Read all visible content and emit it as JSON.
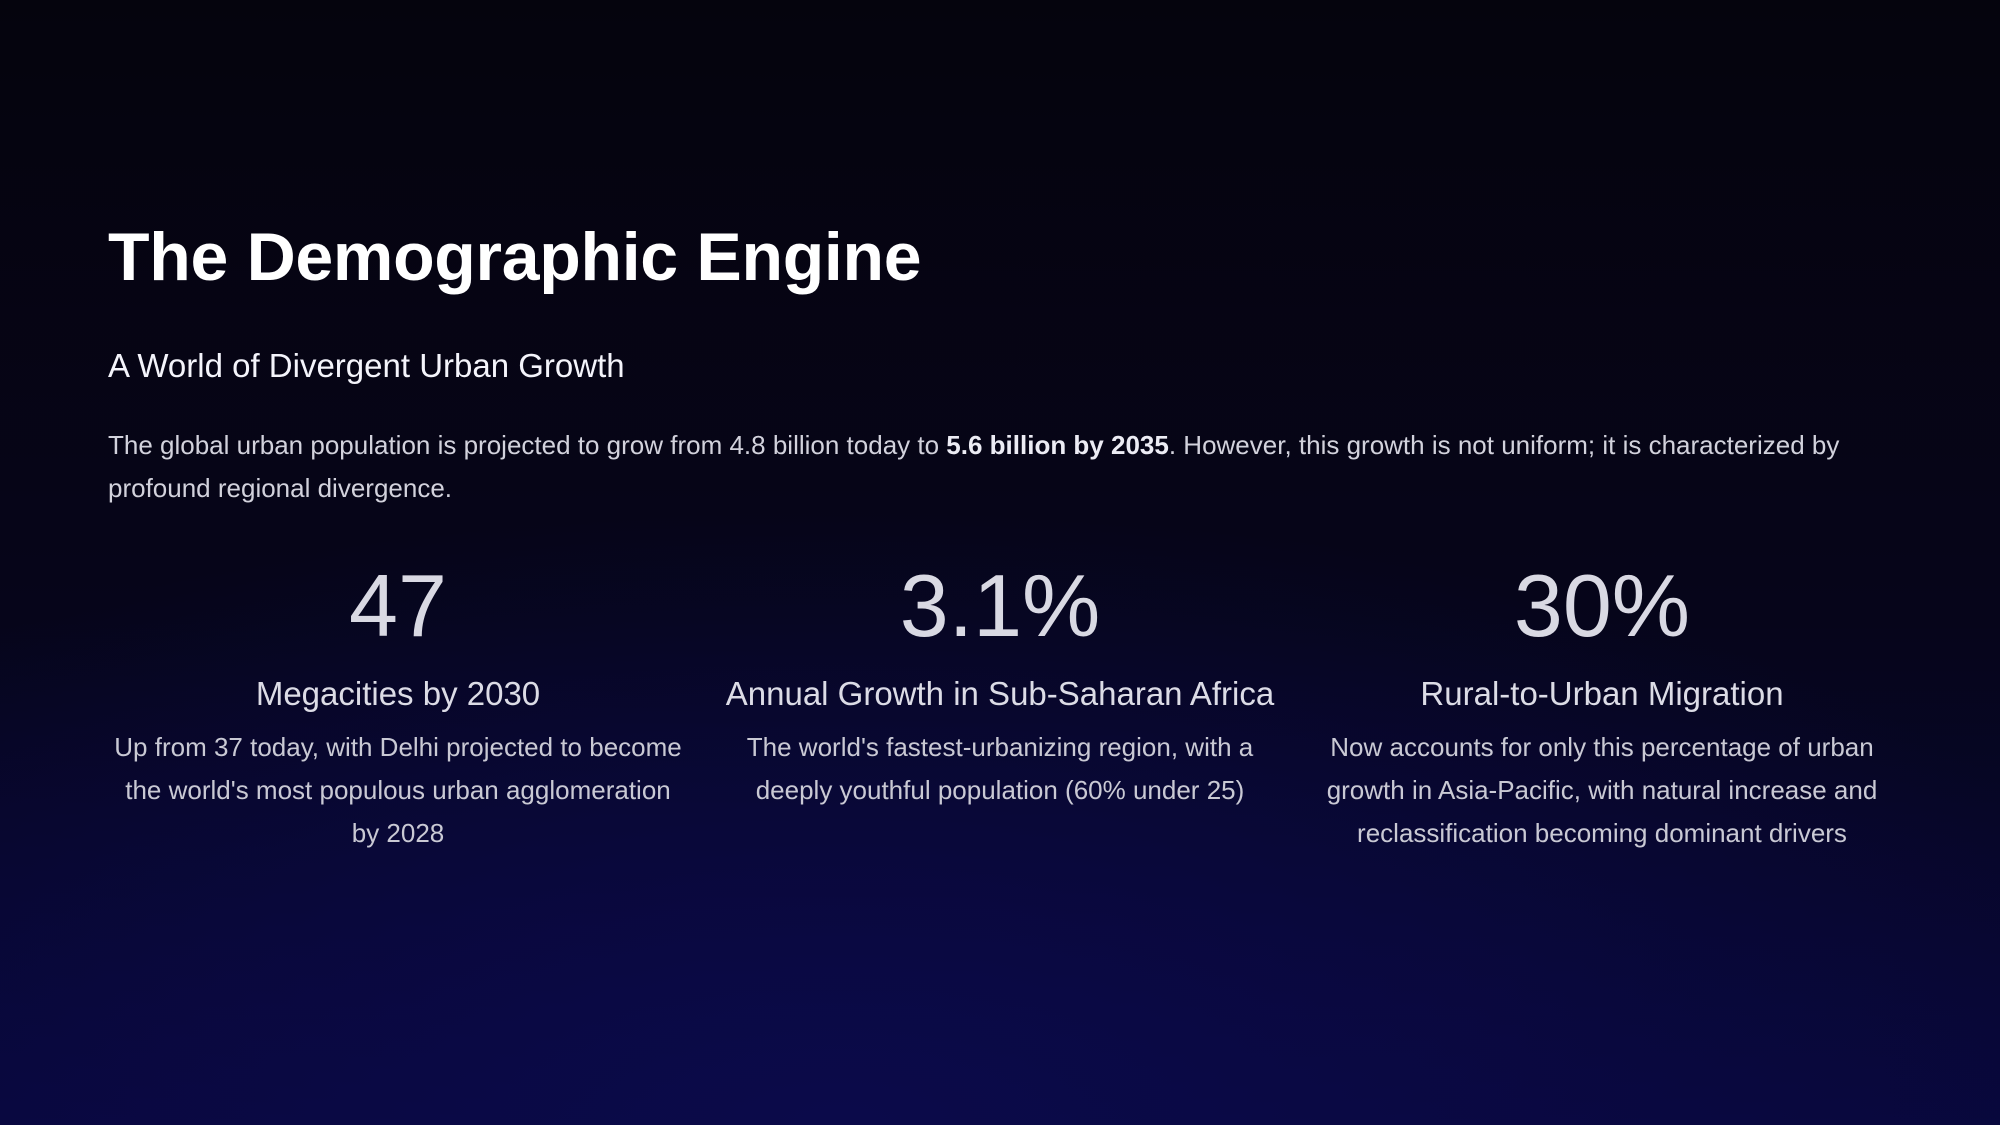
{
  "slide": {
    "title": "The Demographic Engine",
    "subtitle": "A World of Divergent Urban Growth",
    "intro": {
      "before": "The global urban population is projected to grow from 4.8 billion today to ",
      "highlight": "5.6 billion by 2035",
      "after": ". However, this growth is not uniform; it is characterized by profound regional divergence."
    },
    "stats": [
      {
        "value": "47",
        "label": "Megacities by 2030",
        "description": "Up from 37 today, with Delhi projected to become the world's most populous urban agglomeration by 2028"
      },
      {
        "value": "3.1%",
        "label": "Annual Growth in Sub-Saharan Africa",
        "description": "The world's fastest-urbanizing region, with a deeply youthful population (60% under 25)"
      },
      {
        "value": "30%",
        "label": "Rural-to-Urban Migration",
        "description": "Now accounts for only this percentage of urban growth in Asia-Pacific, with natural increase and reclassification becoming dominant drivers"
      }
    ]
  },
  "colors": {
    "background": "#05040f",
    "glow": "#0b0a4a",
    "title": "#ffffff",
    "body_text": "#d2d2dc",
    "stat_value": "#d9d9e3"
  }
}
